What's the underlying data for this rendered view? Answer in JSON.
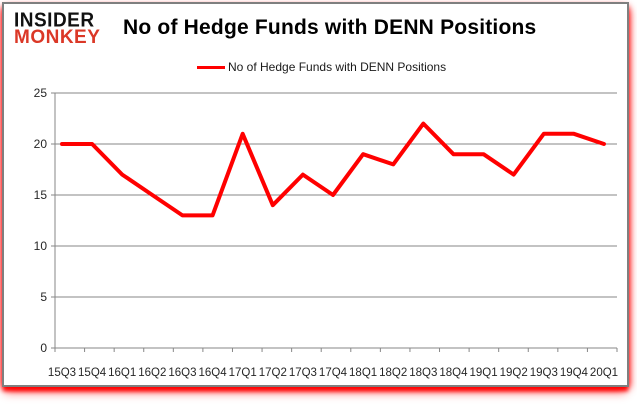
{
  "brand": {
    "line1": "INSIDER",
    "line2": "MONKEY",
    "accent_color": "#db3827"
  },
  "title": "No of Hedge Funds with DENN Positions",
  "legend": {
    "label": "No of Hedge Funds with DENN Positions",
    "line_color": "#ff0000"
  },
  "chart_data": {
    "type": "line",
    "title": "No of Hedge Funds with DENN Positions",
    "categories": [
      "15Q3",
      "15Q4",
      "16Q1",
      "16Q2",
      "16Q3",
      "16Q4",
      "17Q1",
      "17Q2",
      "17Q3",
      "17Q4",
      "18Q1",
      "18Q2",
      "18Q3",
      "18Q4",
      "19Q1",
      "19Q2",
      "19Q3",
      "19Q4",
      "20Q1"
    ],
    "series": [
      {
        "name": "No of Hedge Funds with DENN Positions",
        "color": "#ff0000",
        "values": [
          20,
          20,
          17,
          15,
          13,
          13,
          21,
          14,
          17,
          15,
          19,
          18,
          22,
          19,
          19,
          17,
          21,
          21,
          20
        ]
      }
    ],
    "xlabel": "",
    "ylabel": "",
    "ylim": [
      0,
      25
    ],
    "yticks": [
      0,
      5,
      10,
      15,
      20,
      25
    ],
    "grid": "horizontal",
    "gridline_color": "#878787",
    "axis_color": "#878787",
    "axis_text_color": "#262626",
    "legend_position": "top-center",
    "panel_border_color": "#7f7f7f",
    "glow_color": "#ff0000"
  }
}
